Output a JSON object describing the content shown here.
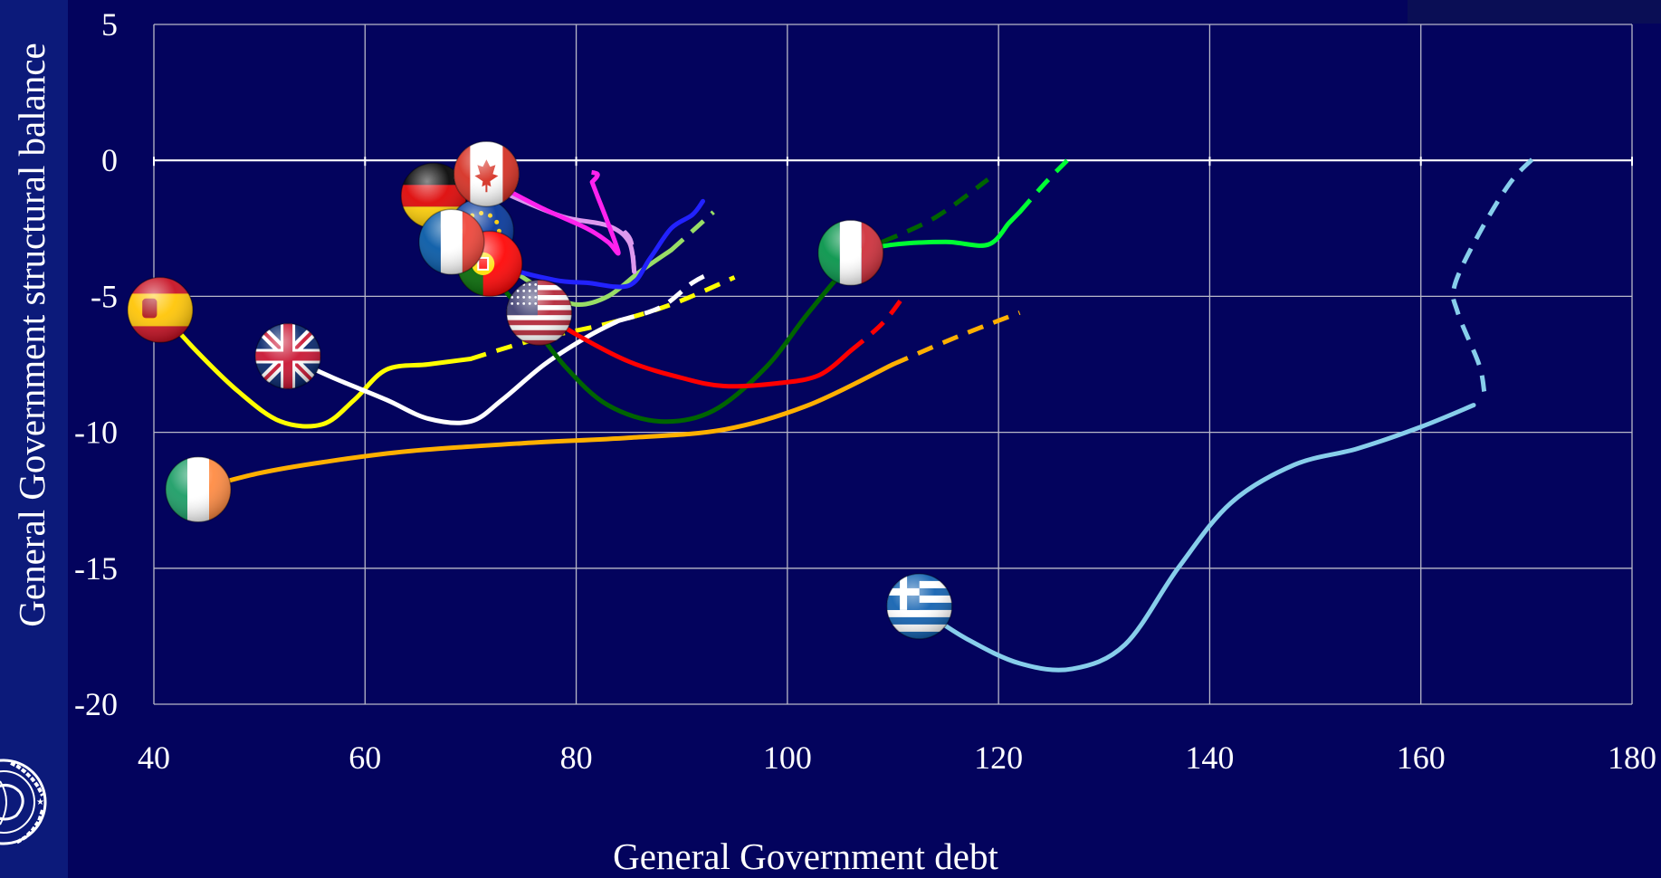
{
  "chart_data": {
    "type": "line",
    "xlabel": "General Government debt",
    "ylabel": "General Government structural balance",
    "xlim": [
      40,
      180
    ],
    "ylim": [
      -20,
      5
    ],
    "xticks": [
      40,
      60,
      80,
      100,
      120,
      140,
      160,
      180
    ],
    "yticks": [
      5,
      0,
      -5,
      -10,
      -15,
      -20
    ],
    "grid": true,
    "series": [
      {
        "country": "Greece",
        "flag": "greece-flag-icon",
        "color": "#87ceeb",
        "solid": [
          [
            113,
            -16.6
          ],
          [
            117,
            -17.6
          ],
          [
            122,
            -18.5
          ],
          [
            127,
            -18.7
          ],
          [
            132,
            -17.8
          ],
          [
            137,
            -15
          ],
          [
            142,
            -12.6
          ],
          [
            148,
            -11.2
          ],
          [
            154,
            -10.6
          ],
          [
            160,
            -9.8
          ],
          [
            165,
            -9
          ]
        ],
        "dashed": [
          [
            166,
            -8.5
          ],
          [
            165.5,
            -7.5
          ],
          [
            163.5,
            -5.6
          ],
          [
            163.2,
            -4.6
          ],
          [
            165.5,
            -2.7
          ],
          [
            168.5,
            -0.8
          ],
          [
            171,
            0.2
          ]
        ]
      },
      {
        "country": "Ireland",
        "flag": "ireland-flag-icon",
        "color": "#ffb000",
        "solid": [
          [
            44,
            -12.1
          ],
          [
            50,
            -11.5
          ],
          [
            56,
            -11.1
          ],
          [
            64,
            -10.7
          ],
          [
            75,
            -10.4
          ],
          [
            85,
            -10.2
          ],
          [
            94,
            -9.9
          ],
          [
            102,
            -9.0
          ],
          [
            110,
            -7.5
          ]
        ],
        "dashed": [
          [
            110,
            -7.5
          ],
          [
            116,
            -6.5
          ],
          [
            122,
            -5.6
          ]
        ]
      },
      {
        "country": "Spain",
        "flag": "spain-flag-icon",
        "color": "#ffff00",
        "solid": [
          [
            40.5,
            -5.5
          ],
          [
            44,
            -7
          ],
          [
            48,
            -8.5
          ],
          [
            52,
            -9.6
          ],
          [
            56,
            -9.7
          ],
          [
            59,
            -8.8
          ],
          [
            62,
            -7.7
          ],
          [
            66,
            -7.5
          ],
          [
            70,
            -7.3
          ]
        ],
        "dashed": [
          [
            70,
            -7.3
          ],
          [
            76,
            -6.6
          ],
          [
            83,
            -6.0
          ],
          [
            89,
            -5.3
          ],
          [
            95,
            -4.3
          ]
        ]
      },
      {
        "country": "United Kingdom",
        "flag": "uk-flag-icon",
        "color": "#ffffff",
        "solid": [
          [
            52.5,
            -7.2
          ],
          [
            57,
            -8
          ],
          [
            62,
            -8.8
          ],
          [
            66,
            -9.5
          ],
          [
            70,
            -9.6
          ],
          [
            73,
            -8.8
          ],
          [
            77,
            -7.5
          ],
          [
            81,
            -6.5
          ],
          [
            84,
            -5.9
          ]
        ],
        "dashed": [
          [
            84,
            -5.9
          ],
          [
            88,
            -5.4
          ],
          [
            91,
            -4.5
          ],
          [
            93,
            -4.1
          ]
        ]
      },
      {
        "country": "Portugal",
        "flag": "portugal-flag-icon",
        "color": "#006400",
        "solid": [
          [
            71,
            -3.8
          ],
          [
            75,
            -5.6
          ],
          [
            79,
            -7.6
          ],
          [
            83,
            -9
          ],
          [
            88,
            -9.6
          ],
          [
            93,
            -9.2
          ],
          [
            98,
            -7.6
          ],
          [
            102,
            -5.6
          ],
          [
            106,
            -3.8
          ],
          [
            109,
            -3
          ]
        ],
        "dashed": [
          [
            109,
            -3
          ],
          [
            114,
            -2.1
          ],
          [
            119,
            -0.7
          ]
        ]
      },
      {
        "country": "United States",
        "flag": "usa-flag-icon",
        "color": "#ff0000",
        "solid": [
          [
            76,
            -5.4
          ],
          [
            80,
            -6.4
          ],
          [
            85,
            -7.4
          ],
          [
            90,
            -8.0
          ],
          [
            94,
            -8.3
          ],
          [
            99,
            -8.2
          ],
          [
            103,
            -7.9
          ],
          [
            106,
            -7.0
          ]
        ],
        "dashed": [
          [
            106,
            -7.0
          ],
          [
            109,
            -6.0
          ],
          [
            111,
            -5.0
          ]
        ]
      },
      {
        "country": "Italy",
        "flag": "italy-flag-icon",
        "color": "#00ff33",
        "solid": [
          [
            106,
            -3.4
          ],
          [
            110,
            -3.1
          ],
          [
            115,
            -3.0
          ],
          [
            119,
            -3.1
          ],
          [
            121,
            -2.3
          ],
          [
            122,
            -1.9
          ]
        ],
        "dashed": [
          [
            122,
            -1.9
          ],
          [
            124.5,
            -0.8
          ],
          [
            126.5,
            0
          ]
        ]
      },
      {
        "country": "Euro area",
        "flag": "eu-flag-icon",
        "color": "#99dd66",
        "solid": [
          [
            73,
            -3.8
          ],
          [
            77,
            -4.8
          ],
          [
            80,
            -5.3
          ],
          [
            83,
            -5.0
          ],
          [
            86,
            -4.1
          ],
          [
            89,
            -3.3
          ]
        ],
        "dashed": [
          [
            89,
            -3.3
          ],
          [
            91,
            -2.6
          ],
          [
            93,
            -1.9
          ]
        ]
      },
      {
        "country": "France",
        "flag": "france-flag-icon",
        "color": "#2222ff",
        "solid": [
          [
            68,
            -3.0
          ],
          [
            73,
            -3.9
          ],
          [
            78,
            -4.4
          ],
          [
            81,
            -4.5
          ],
          [
            85,
            -4.6
          ],
          [
            87,
            -3.6
          ],
          [
            89,
            -2.5
          ],
          [
            91,
            -2.0
          ],
          [
            92,
            -1.5
          ]
        ],
        "dashed": []
      },
      {
        "country": "Canada",
        "flag": "canada-flag-icon",
        "color": "#dd99ee",
        "solid": [
          [
            71,
            -0.8
          ],
          [
            75,
            -1.5
          ],
          [
            79,
            -2.1
          ],
          [
            83,
            -2.4
          ],
          [
            85,
            -3.0
          ],
          [
            85.5,
            -4.1
          ]
        ],
        "dashed": [
          [
            85.5,
            -4.1
          ],
          [
            85.2,
            -3.0
          ],
          [
            84.5,
            -2.6
          ]
        ]
      },
      {
        "country": "Germany",
        "flag": "germany-flag-icon",
        "color": "#ff22ee",
        "solid": [
          [
            73,
            -1.0
          ],
          [
            77,
            -1.8
          ],
          [
            81,
            -2.5
          ],
          [
            83,
            -3.0
          ],
          [
            84,
            -3.4
          ],
          [
            83,
            -2.3
          ],
          [
            82,
            -1.3
          ],
          [
            81.5,
            -0.8
          ]
        ],
        "dashed": [
          [
            81.5,
            -0.8
          ],
          [
            82,
            -0.5
          ],
          [
            80.5,
            -0.4
          ]
        ]
      }
    ]
  }
}
